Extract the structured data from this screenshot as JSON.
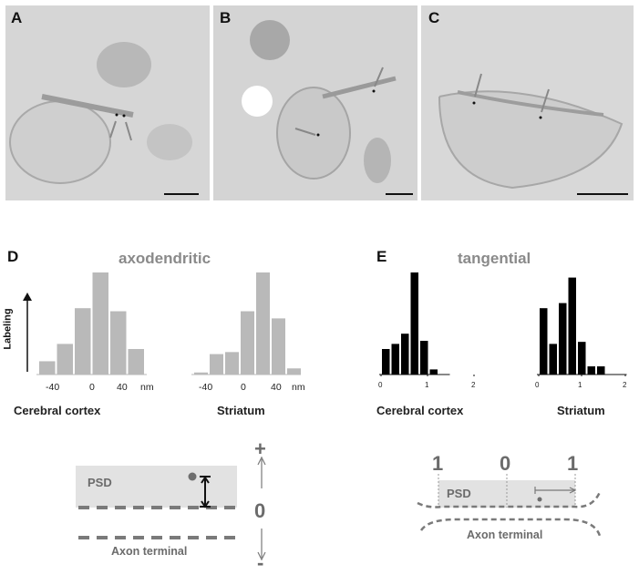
{
  "panels": {
    "A": {
      "letter": "A"
    },
    "B": {
      "letter": "B"
    },
    "C": {
      "letter": "C"
    },
    "D": {
      "letter": "D",
      "title": "axodendritic"
    },
    "E": {
      "letter": "E",
      "title": "tangential"
    }
  },
  "colors": {
    "gray_bars": "#b9b9b9",
    "black_bars": "#000000",
    "psd_fill": "#e2e2e2",
    "dashed": "#7a7a7a"
  },
  "labeling_axis_label": "Labeling",
  "chart_data": [
    {
      "type": "bar",
      "id": "D-cortex",
      "categories": [
        "-50",
        "-30",
        "-10",
        "10",
        "30",
        "50"
      ],
      "values": [
        0.13,
        0.3,
        0.65,
        1.0,
        0.62,
        0.25
      ],
      "xticks": [
        "-40",
        "0",
        "40"
      ],
      "xunit": "nm",
      "caption": "Cerebral cortex",
      "color": "#b9b9b9"
    },
    {
      "type": "bar",
      "id": "D-striatum",
      "categories": [
        "-60",
        "-40",
        "-20",
        "0",
        "20",
        "40",
        "60"
      ],
      "values": [
        0.02,
        0.2,
        0.22,
        0.62,
        1.0,
        0.55,
        0.06
      ],
      "xticks": [
        "-40",
        "0",
        "40"
      ],
      "xunit": "nm",
      "caption": "Striatum",
      "color": "#b9b9b9"
    },
    {
      "type": "bar",
      "id": "E-cortex",
      "bin_centers": [
        0.1,
        0.3,
        0.5,
        0.7,
        0.9,
        1.1,
        1.3
      ],
      "values": [
        0.25,
        0.3,
        0.4,
        1.0,
        0.33,
        0.05,
        0.0
      ],
      "xticks": [
        "0",
        "1",
        "2"
      ],
      "caption": "Cerebral cortex",
      "color": "#000000"
    },
    {
      "type": "bar",
      "id": "E-striatum",
      "bin_centers": [
        0.1,
        0.3,
        0.5,
        0.7,
        0.9,
        1.1,
        1.3,
        1.5,
        1.7
      ],
      "values": [
        0.65,
        0.3,
        0.7,
        0.95,
        0.32,
        0.08,
        0.08,
        0.0,
        0.0
      ],
      "xticks": [
        "0",
        "1",
        "2"
      ],
      "caption": "Striatum",
      "color": "#000000"
    }
  ],
  "schematic_D": {
    "psd": "PSD",
    "plus": "+",
    "zero": "0",
    "minus": "-",
    "axon": "Axon terminal"
  },
  "schematic_E": {
    "left_one": "1",
    "zero": "0",
    "right_one": "1",
    "psd": "PSD",
    "axon": "Axon terminal"
  }
}
